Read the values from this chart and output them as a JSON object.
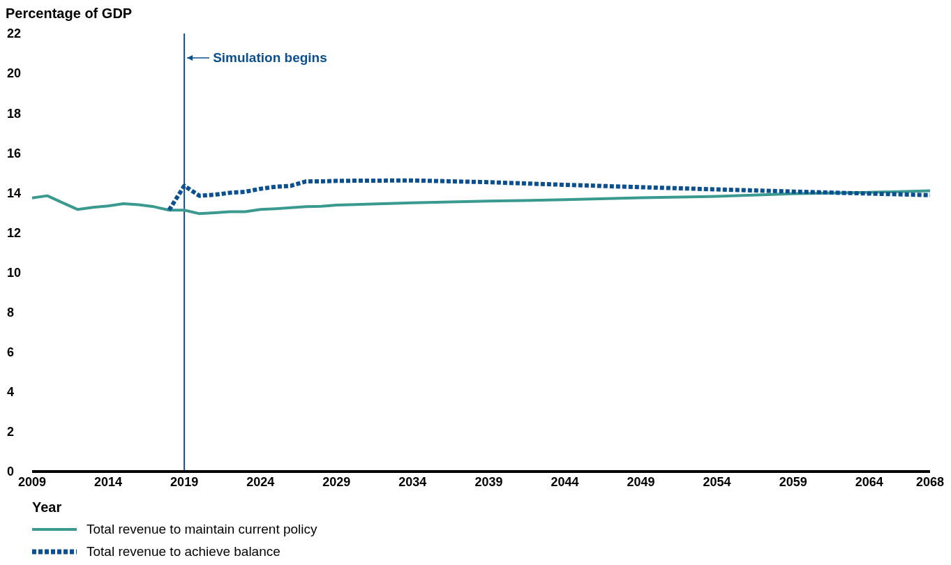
{
  "chart_data": {
    "type": "line",
    "ylabel": "Percentage of GDP",
    "xlabel": "Year",
    "x": [
      2009,
      2010,
      2011,
      2012,
      2013,
      2014,
      2015,
      2016,
      2017,
      2018,
      2019,
      2020,
      2021,
      2022,
      2023,
      2024,
      2025,
      2026,
      2027,
      2028,
      2029,
      2034,
      2039,
      2044,
      2049,
      2054,
      2059,
      2064,
      2068
    ],
    "series": [
      {
        "name": "Total revenue to maintain current policy",
        "color": "#3a9a8f",
        "line_style": "solid",
        "values": [
          13.74,
          13.85,
          13.5,
          13.16,
          13.27,
          13.34,
          13.45,
          13.4,
          13.3,
          13.13,
          13.13,
          12.95,
          13.0,
          13.05,
          13.05,
          13.16,
          13.2,
          13.25,
          13.3,
          13.32,
          13.38,
          13.5,
          13.58,
          13.65,
          13.75,
          13.82,
          13.95,
          14.02,
          14.1
        ]
      },
      {
        "name": "Total revenue to achieve balance",
        "color": "#0a4f8f",
        "line_style": "dashed",
        "values": [
          null,
          null,
          null,
          null,
          null,
          null,
          null,
          null,
          null,
          13.13,
          14.35,
          13.85,
          13.9,
          14.0,
          14.05,
          14.2,
          14.3,
          14.35,
          14.57,
          14.57,
          14.6,
          14.62,
          14.53,
          14.4,
          14.28,
          14.17,
          14.06,
          13.96,
          13.88
        ]
      }
    ],
    "xlim": [
      2009,
      2068
    ],
    "xticks": [
      2009,
      2014,
      2019,
      2024,
      2029,
      2034,
      2039,
      2044,
      2049,
      2054,
      2059,
      2064,
      2068
    ],
    "ylim": [
      0,
      22
    ],
    "yticks": [
      0,
      2,
      4,
      6,
      8,
      10,
      12,
      14,
      16,
      18,
      20,
      22
    ],
    "ref_lines": [
      {
        "axis": "x",
        "value": 2019,
        "label": "Simulation begins",
        "color": "#0a4f8f"
      }
    ],
    "legend": "bottom"
  }
}
